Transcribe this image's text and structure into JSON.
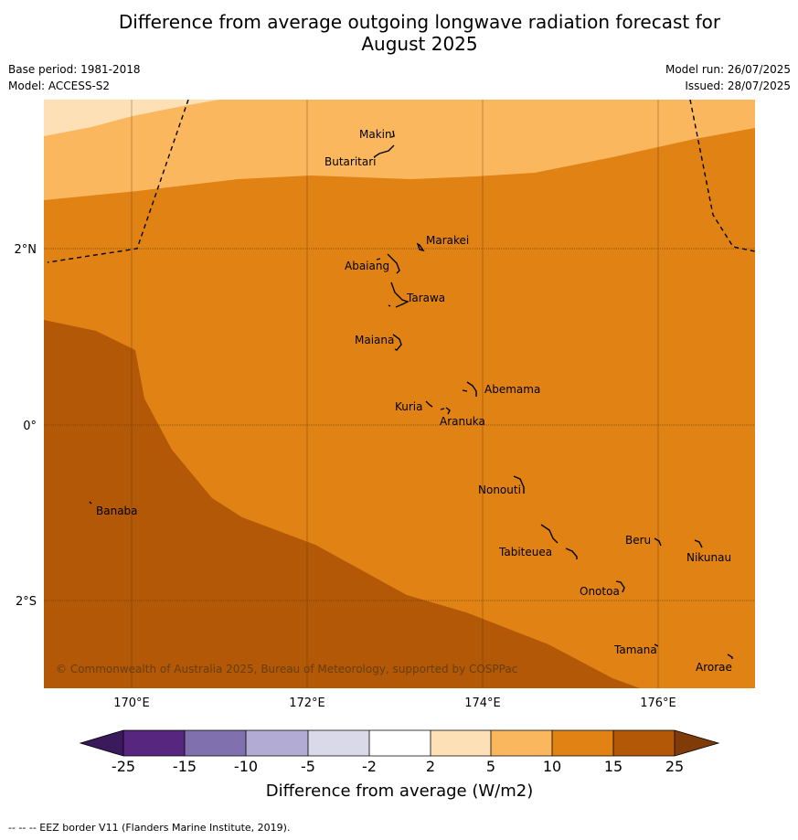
{
  "title_line1": "Difference from average outgoing longwave radiation forecast for",
  "title_line2": "August 2025",
  "base_period": "Base period: 1981-2018",
  "model": "Model: ACCESS-S2",
  "model_run": "Model run: 26/07/2025",
  "issued": "Issued: 28/07/2025",
  "map": {
    "lon_labels": [
      "170°E",
      "172°E",
      "174°E",
      "176°E"
    ],
    "lat_labels": [
      "2°N",
      "0°",
      "2°S"
    ],
    "islands": [
      "Makin",
      "Butaritari",
      "Marakei",
      "Abaiang",
      "Tarawa",
      "Maiana",
      "Abemama",
      "Kuria",
      "Aranuka",
      "Banaba",
      "Nonouti",
      "Beru",
      "Tabiteuea",
      "Nikunau",
      "Onotoa",
      "Tamana",
      "Arorae"
    ],
    "copyright": "© Commonwealth of Australia 2025, Bureau of Meteorology, supported by COSPPac"
  },
  "legend": {
    "title": "Difference from average (W/m2)",
    "ticks": [
      "-25",
      "-15",
      "-10",
      "-5",
      "-2",
      "2",
      "5",
      "10",
      "15",
      "25"
    ],
    "colors": [
      "#3b1a5c",
      "#57267f",
      "#8070ad",
      "#b2acd4",
      "#d9d9ea",
      "#ffffff",
      "#fee0b6",
      "#fbb75e",
      "#e08214",
      "#b35806",
      "#7f3b08"
    ]
  },
  "footer": "--  --  -- EEZ border V11 (Flanders Marine Institute, 2019)."
}
